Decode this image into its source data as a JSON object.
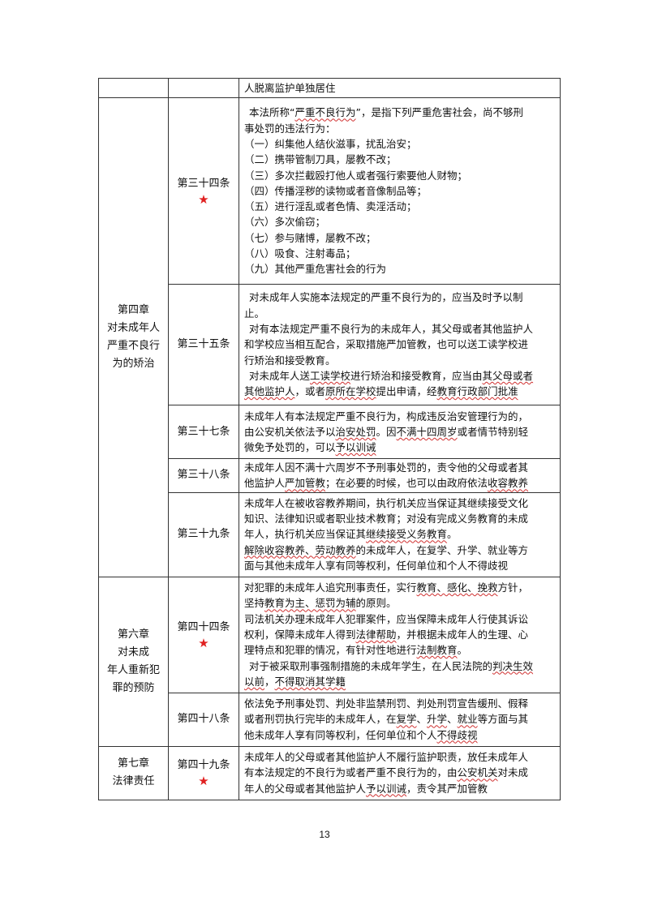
{
  "rows": [
    {
      "article": "",
      "lines": [
        "人脱离监护单独居住"
      ]
    },
    {
      "article": "第三十四条",
      "lines": [
        "本法所称“严重不良行为”，是指下列严重危害社会，尚不够刑",
        "事处罚的违法行为：",
        "（一）纠集他人结伙滋事，扰乱治安；",
        "（二）携带管制刀具，屡教不改；",
        "（三）多次拦截殴打他人或者强行索要他人财物；",
        "（四）传播淫秽的读物或者音像制品等；",
        "（五）进行淫乱或者色情、卖淫活动；",
        "（六）多次偷窃；",
        "（七）参与赌博，屡教不改；",
        "（八）吸食、注射毒品；",
        "（九）其他严重危害社会的行为"
      ]
    },
    {
      "article": "第三十五条",
      "lines": [
        "对未成年人实施本法规定的严重不良行为的，应当及时予以制",
        "止。",
        "对有本法规定严重不良行为的未成年人，其父母或者其他监护人",
        "和学校应当相互配合，采取措施严加管教，也可以送工读学校进",
        "行矫治和接受教育。",
        "对未成年人送工读学校进行矫治和接受教育，应当由其父母或者",
        "其他监护人，或者原所在学校提出申请，经教育行政部门批准"
      ]
    },
    {
      "article": "第三十七条",
      "lines": [
        "未成年人有本法规定严重不良行为，构成违反治安管理行为的，",
        "由公安机关依法予以治安处罚。因不满十四周岁或者情节特别轻",
        "微免予处罚的，可以予以训诫"
      ]
    },
    {
      "article": "第三十八条",
      "lines": [
        "未成年人因不满十六周岁不予刑事处罚的，责令他的父母或者其",
        "他监护人严加管教；在必要的时候，也可以由政府依法收容教养"
      ]
    },
    {
      "article": "第三十九条",
      "lines": [
        "未成年人在被收容教养期间，执行机关应当保证其继续接受文化",
        "知识、法律知识或者职业技术教育；对没有完成义务教育的未成",
        "年人，执行机关应当保证其继续接受义务教育。",
        "解除收容教养、劳动教养的未成年人，在复学、升学、就业等方",
        "面与其他未成年人享有同等权利，任何单位和个人不得歧视"
      ]
    },
    {
      "article": "第四十四条",
      "lines": [
        "对犯罪的未成年人追究刑事责任，实行教育、感化、挽救方针，",
        "坚持教育为主、惩罚为辅的原则。",
        "司法机关办理未成年人犯罪案件，应当保障未成年人行使其诉讼",
        "权利，保障未成年人得到法律帮助，并根据未成年人的生理、心",
        "理特点和犯罪的情况，有针对性地进行法制教育。",
        "对于被采取刑事强制措施的未成年学生，在人民法院的判决生效",
        "以前，不得取消其学籍"
      ]
    },
    {
      "article": "第四十八条",
      "lines": [
        "依法免予刑事处罚、判处非监禁刑罚、判处刑罚宣告缓刑、假释",
        "或者刑罚执行完毕的未成年人，在复学、升学、就业等方面与其",
        "他未成年人享有同等权利，任何单位和个人不得歧视"
      ]
    },
    {
      "article": "第四十九条",
      "lines": [
        "未成年人的父母或者其他监护人不履行监护职责，放任未成年人",
        "有本法规定的不良行为或者严重不良行为的，由公安机关对未成",
        "年人的父母或者其他监护人予以训诫，责令其严加管教"
      ]
    }
  ],
  "chapters": {
    "ch4": [
      "第四章",
      "对未成年人",
      "严重不良行",
      "为的矫治"
    ],
    "ch6": [
      "第六章",
      "对未成",
      "年人重新犯",
      "罪的预防"
    ],
    "ch7": [
      "第七章",
      "法律责任"
    ]
  },
  "star": "★",
  "page_number": "13",
  "colors": {
    "star": "#e02020",
    "underline": "#d03030",
    "border": "#333333"
  }
}
